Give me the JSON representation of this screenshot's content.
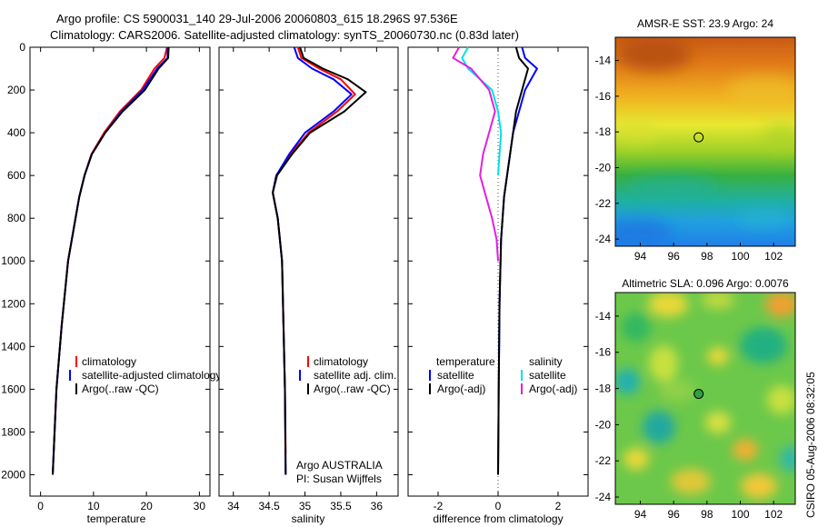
{
  "header": {
    "title_line1": "Argo profile: CS 5900031_140 29-Jul-2006 20060803_615 18.296S 97.536E",
    "title_line2": "Climatology: CARS2006. Satellite-adjusted climatology: synTS_20060730.nc (0.83d later)"
  },
  "colors": {
    "climatology": "#ff0000",
    "satellite": "#0000ff",
    "argo": "#000000",
    "cyan": "#00e0e8",
    "magenta": "#e020e0"
  },
  "chart_data": [
    {
      "id": "temperature",
      "type": "line",
      "xlabel": "temperature",
      "ylabel": "",
      "xlim": [
        -2,
        32
      ],
      "ylim": [
        2100,
        0
      ],
      "xticks": [
        0,
        10,
        20,
        30
      ],
      "yticks": [
        0,
        200,
        400,
        600,
        800,
        1000,
        1200,
        1400,
        1600,
        1800,
        2000
      ],
      "legend": [
        "climatology",
        "satellite-adjusted climatology",
        "Argo(..raw -QC)"
      ],
      "series": [
        {
          "name": "climatology",
          "color": "climatology",
          "x": [
            23.9,
            23.4,
            21.5,
            19.0,
            15.0,
            12.0,
            9.6,
            8.3,
            7.3,
            5.2,
            4.0,
            3.0,
            2.3
          ],
          "y": [
            0,
            50,
            100,
            200,
            300,
            400,
            500,
            600,
            700,
            1000,
            1300,
            1600,
            2000
          ]
        },
        {
          "name": "satellite-adjusted climatology",
          "color": "satellite",
          "x": [
            24.0,
            24.0,
            22.0,
            19.3,
            15.3,
            12.2,
            9.7,
            8.3,
            7.3,
            5.2,
            4.0,
            3.0,
            2.3
          ],
          "y": [
            0,
            50,
            100,
            200,
            300,
            400,
            500,
            600,
            700,
            1000,
            1300,
            1600,
            2000
          ]
        },
        {
          "name": "Argo(..raw -QC)",
          "color": "argo",
          "x": [
            24.2,
            24.1,
            22.3,
            19.7,
            15.5,
            12.2,
            9.7,
            8.3,
            7.3,
            5.2,
            4.0,
            3.0,
            2.3
          ],
          "y": [
            0,
            50,
            100,
            200,
            300,
            400,
            500,
            600,
            700,
            1000,
            1300,
            1600,
            2000
          ]
        }
      ]
    },
    {
      "id": "salinity",
      "type": "line",
      "xlabel": "salinity",
      "ylabel": "",
      "xlim": [
        33.8,
        36.3
      ],
      "ylim": [
        2100,
        0
      ],
      "xticks": [
        34,
        34.5,
        35,
        35.5,
        36
      ],
      "legend": [
        "climatology",
        "satellite adj. clim.",
        "Argo(..raw -QC)"
      ],
      "annotation": [
        "Argo AUSTRALIA",
        "PI: Susan Wijffels"
      ],
      "series": [
        {
          "name": "climatology",
          "color": "climatology",
          "x": [
            34.9,
            34.95,
            35.2,
            35.5,
            35.7,
            35.45,
            35.05,
            34.8,
            34.6,
            34.55,
            34.62,
            34.68,
            34.7,
            34.72,
            34.73
          ],
          "y": [
            0,
            50,
            100,
            150,
            220,
            300,
            400,
            500,
            600,
            680,
            800,
            1000,
            1300,
            1600,
            1900
          ]
        },
        {
          "name": "satellite adj. clim.",
          "color": "satellite",
          "x": [
            34.85,
            34.9,
            35.1,
            35.4,
            35.65,
            35.4,
            35.0,
            34.78,
            34.6,
            34.55,
            34.62,
            34.68,
            34.7,
            34.72,
            34.73
          ],
          "y": [
            0,
            50,
            100,
            150,
            220,
            300,
            400,
            500,
            600,
            680,
            800,
            1000,
            1300,
            1600,
            2000
          ]
        },
        {
          "name": "Argo(..raw -QC)",
          "color": "argo",
          "x": [
            34.93,
            34.98,
            35.25,
            35.6,
            35.85,
            35.55,
            35.07,
            34.82,
            34.61,
            34.55,
            34.62,
            34.68,
            34.7,
            34.72,
            34.73
          ],
          "y": [
            0,
            50,
            100,
            150,
            210,
            300,
            400,
            500,
            600,
            680,
            800,
            1000,
            1300,
            1600,
            2000
          ]
        }
      ]
    },
    {
      "id": "difference",
      "type": "line",
      "xlabel": "difference from climatology",
      "ylabel": "",
      "xlim": [
        -3,
        3
      ],
      "ylim": [
        2100,
        0
      ],
      "xticks": [
        -2,
        0,
        2
      ],
      "legend_left": [
        "temperature",
        "satellite",
        "Argo(-adj)"
      ],
      "legend_right": [
        "salinity",
        "satellite",
        "Argo(-adj)"
      ],
      "series": [
        {
          "name": "temperature satellite",
          "color": "satellite",
          "x": [
            0.8,
            0.9,
            1.3,
            0.9,
            0.7,
            0.5,
            0.4,
            0.3,
            0.2,
            0.1,
            0.05,
            0.02,
            0.0
          ],
          "y": [
            0,
            50,
            100,
            200,
            300,
            400,
            500,
            600,
            700,
            900,
            1200,
            1600,
            2000
          ]
        },
        {
          "name": "temperature Argo(-adj)",
          "color": "argo",
          "x": [
            0.6,
            0.7,
            1.0,
            0.8,
            0.6,
            0.5,
            0.4,
            0.3,
            0.2,
            0.1,
            0.05,
            0.02,
            0.0
          ],
          "y": [
            0,
            50,
            100,
            200,
            300,
            400,
            500,
            600,
            700,
            900,
            1200,
            1600,
            2000
          ]
        },
        {
          "name": "salinity satellite",
          "color": "cyan",
          "x": [
            -1.0,
            -1.2,
            -1.0,
            -0.2,
            0.0,
            0.1,
            0.05,
            0.0
          ],
          "y": [
            0,
            50,
            100,
            200,
            300,
            400,
            500,
            600
          ]
        },
        {
          "name": "salinity Argo(-adj)",
          "color": "magenta",
          "x": [
            -1.3,
            -1.5,
            -0.9,
            -0.3,
            -0.1,
            -0.3,
            -0.5,
            -0.6,
            -0.4,
            -0.2,
            -0.05,
            0.0
          ],
          "y": [
            0,
            50,
            100,
            200,
            300,
            400,
            500,
            600,
            700,
            800,
            900,
            1000
          ]
        }
      ]
    }
  ],
  "maps": [
    {
      "id": "sst",
      "title": "AMSR-E SST: 23.9 Argo: 24",
      "xticks": [
        94,
        96,
        98,
        100,
        102
      ],
      "yticks": [
        -14,
        -16,
        -18,
        -20,
        -22,
        -24
      ],
      "xlim": [
        92.5,
        103.3
      ],
      "ylim": [
        -24.4,
        -12.7
      ],
      "marker": {
        "lon": 97.5,
        "lat": -18.3
      }
    },
    {
      "id": "sla",
      "title": "Altimetric SLA: 0.096 Argo: 0.0076",
      "xticks": [
        94,
        96,
        98,
        100,
        102
      ],
      "yticks": [
        -14,
        -16,
        -18,
        -20,
        -22,
        -24
      ],
      "xlim": [
        92.5,
        103.3
      ],
      "ylim": [
        -24.4,
        -12.7
      ],
      "marker": {
        "lon": 97.5,
        "lat": -18.3
      }
    }
  ],
  "side_label": "CSIRO 05-Aug-2006 08:32:05"
}
